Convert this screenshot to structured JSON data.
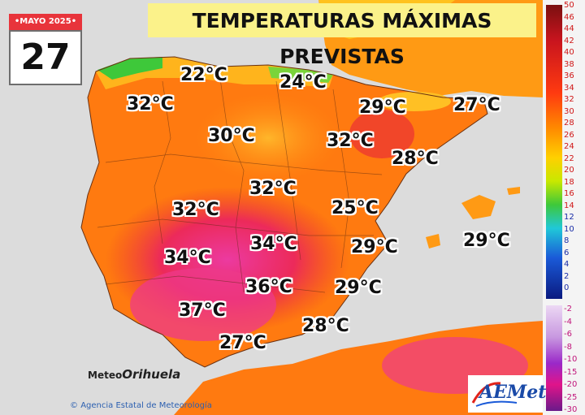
{
  "title": "TEMPERATURAS MÁXIMAS PREVISTAS",
  "calendar": {
    "month": "•MAYO 2025•",
    "day": "27"
  },
  "temperatures": [
    {
      "label": "22°C"
    },
    {
      "label": "24°C"
    },
    {
      "label": "32°C"
    },
    {
      "label": "29°C"
    },
    {
      "label": "27°C"
    },
    {
      "label": "30°C"
    },
    {
      "label": "32°C"
    },
    {
      "label": "28°C"
    },
    {
      "label": "32°C"
    },
    {
      "label": "32°C"
    },
    {
      "label": "25°C"
    },
    {
      "label": "34°C"
    },
    {
      "label": "34°C"
    },
    {
      "label": "29°C"
    },
    {
      "label": "29°C"
    },
    {
      "label": "36°C"
    },
    {
      "label": "29°C"
    },
    {
      "label": "37°C"
    },
    {
      "label": "28°C"
    },
    {
      "label": "27°C"
    }
  ],
  "legend": {
    "ticks": [
      "50",
      "46",
      "44",
      "42",
      "40",
      "38",
      "36",
      "34",
      "32",
      "30",
      "28",
      "26",
      "24",
      "22",
      "20",
      "18",
      "16",
      "14",
      "12",
      "10",
      "8",
      "6",
      "4",
      "2",
      "0",
      "-2",
      "-4",
      "-6",
      "-8",
      "-10",
      "-15",
      "-20",
      "-25",
      "-30"
    ],
    "colors": {
      "hot": "#e8172a",
      "warm": "#ff6a00",
      "mild": "#ffb000",
      "yellow": "#f5e400",
      "green": "#3ec83a",
      "cyan": "#20c8d8",
      "blue": "#1a5ad8",
      "navy": "#0a1a80",
      "lilac": "#d2b0ea",
      "purple": "#9a28c8",
      "magenta": "#e0148a"
    }
  },
  "branding": {
    "watermark_small": "Meteo",
    "watermark_big": "Orihuela",
    "credit": "Agencia Estatal de Meteorología",
    "logo": "AEMet"
  }
}
